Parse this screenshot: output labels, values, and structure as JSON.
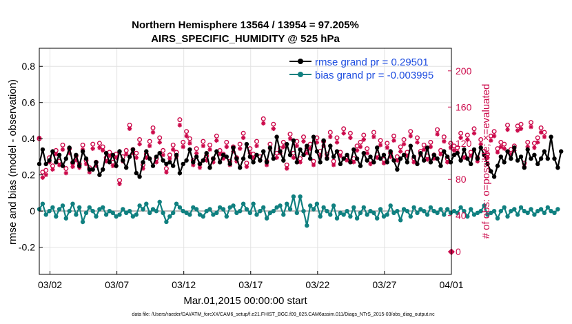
{
  "chart_data": {
    "type": "line",
    "title": "Northern Hemisphere 13564 / 13954 = 97.205%",
    "subtitle": "AIRS_SPECIFIC_HUMIDITY @ 525 hPa",
    "xlabel": "Mar.01,2015 00:00:00 start",
    "ylabel": "rmse and bias (model - observation)",
    "ylabel_right": "# of obs: o=possible; ×=evaluated",
    "ylim": [
      -0.35,
      0.9
    ],
    "ylim_right": [
      -25,
      225
    ],
    "xlim": [
      0.2,
      31.0
    ],
    "x_ticks": [
      1.0,
      6.0,
      11.0,
      16.0,
      21.0,
      26.0,
      31.0
    ],
    "x_ticklabels": [
      "03/02",
      "03/07",
      "03/12",
      "03/17",
      "03/22",
      "03/27",
      "04/01"
    ],
    "y_ticks": [
      -0.2,
      0,
      0.2,
      0.4,
      0.6,
      0.8
    ],
    "y_ticklabels": [
      "-0.2",
      "0",
      "0.2",
      "0.4",
      "0.6",
      "0.8"
    ],
    "y_right_ticks": [
      0,
      40,
      80,
      120,
      160,
      200
    ],
    "y_right_ticklabels": [
      "0",
      "40",
      "80",
      "120",
      "160",
      "200"
    ],
    "grid": true,
    "legend_position": "top-right",
    "series": [
      {
        "name": "rmse grand pr = 0.29501",
        "axis": "left",
        "color": "#000000",
        "marker": "filled-circle",
        "start": 0.2,
        "step": 0.25,
        "values": [
          0.26,
          0.34,
          0.26,
          0.28,
          0.33,
          0.27,
          0.31,
          0.25,
          0.29,
          0.35,
          0.27,
          0.31,
          0.25,
          0.33,
          0.29,
          0.23,
          0.23,
          0.27,
          0.2,
          0.23,
          0.32,
          0.27,
          0.31,
          0.25,
          0.33,
          0.28,
          0.24,
          0.3,
          0.34,
          0.21,
          0.19,
          0.27,
          0.33,
          0.29,
          0.25,
          0.3,
          0.32,
          0.28,
          0.26,
          0.27,
          0.25,
          0.31,
          0.21,
          0.26,
          0.28,
          0.34,
          0.27,
          0.3,
          0.26,
          0.28,
          0.32,
          0.24,
          0.29,
          0.33,
          0.27,
          0.31,
          0.3,
          0.26,
          0.35,
          0.29,
          0.24,
          0.29,
          0.37,
          0.3,
          0.27,
          0.31,
          0.28,
          0.33,
          0.27,
          0.35,
          0.29,
          0.41,
          0.33,
          0.28,
          0.37,
          0.31,
          0.39,
          0.27,
          0.34,
          0.31,
          0.36,
          0.29,
          0.41,
          0.33,
          0.27,
          0.39,
          0.29,
          0.36,
          0.3,
          0.33,
          0.26,
          0.29,
          0.31,
          0.27,
          0.34,
          0.29,
          0.25,
          0.32,
          0.28,
          0.3,
          0.27,
          0.35,
          0.29,
          0.31,
          0.27,
          0.33,
          0.28,
          0.23,
          0.29,
          0.31,
          0.27,
          0.36,
          0.3,
          0.26,
          0.32,
          0.28,
          0.35,
          0.27,
          0.31,
          0.29,
          0.25,
          0.33,
          0.3,
          0.27,
          0.31,
          0.32,
          0.28,
          0.34,
          0.29,
          0.26,
          0.34,
          0.29,
          0.35,
          0.31,
          0.26,
          0.22,
          0.19,
          0.25,
          0.3,
          0.27,
          0.33,
          0.29,
          0.35,
          0.28,
          0.3,
          0.24,
          0.34,
          0.29,
          0.31,
          0.26,
          0.29,
          0.33,
          0.29,
          0.41,
          0.29,
          0.24,
          0.33
        ]
      },
      {
        "name": "bias grand pr = -0.003995",
        "axis": "left",
        "color": "#108080",
        "marker": "filled-circle",
        "start": 0.2,
        "step": 0.25,
        "values": [
          0.01,
          0.04,
          -0.02,
          0.0,
          0.02,
          -0.03,
          0.01,
          0.03,
          -0.04,
          0.0,
          0.04,
          -0.02,
          0.02,
          -0.06,
          -0.01,
          0.02,
          0.0,
          -0.03,
          0.01,
          0.02,
          -0.02,
          0.0,
          -0.01,
          -0.03,
          -0.02,
          0.01,
          -0.01,
          0.0,
          -0.03,
          -0.02,
          0.03,
          0.01,
          0.04,
          -0.01,
          0.01,
          0.0,
          0.05,
          -0.01,
          -0.06,
          -0.03,
          -0.01,
          0.04,
          0.02,
          0.0,
          -0.01,
          -0.02,
          0.02,
          0.01,
          -0.02,
          -0.03,
          0.0,
          0.01,
          -0.02,
          -0.01,
          0.02,
          0.01,
          -0.03,
          0.02,
          0.03,
          -0.01,
          0.0,
          0.04,
          0.01,
          -0.01,
          0.04,
          -0.02,
          0.0,
          0.02,
          -0.04,
          -0.01,
          0.0,
          0.02,
          0.03,
          -0.02,
          0.04,
          0.01,
          0.08,
          -0.01,
          0.08,
          0.0,
          -0.08,
          0.03,
          0.01,
          0.04,
          -0.03,
          0.02,
          0.0,
          -0.02,
          0.03,
          -0.04,
          -0.01,
          -0.02,
          0.0,
          -0.03,
          0.02,
          -0.04,
          -0.01,
          0.02,
          -0.02,
          0.0,
          -0.01,
          -0.04,
          0.01,
          -0.03,
          -0.02,
          0.03,
          -0.01,
          0.0,
          -0.05,
          0.01,
          0.0,
          -0.03,
          0.02,
          -0.01,
          0.01,
          0.0,
          -0.02,
          0.02,
          0.0,
          -0.01,
          0.01,
          -0.02,
          0.01,
          -0.01,
          0.0,
          -0.01,
          0.02,
          0.0,
          -0.03,
          0.01,
          -0.02,
          -0.01,
          0.0,
          0.03,
          -0.02,
          -0.01,
          0.0,
          -0.04,
          0.0,
          0.02,
          -0.03,
          0.0,
          0.01,
          -0.02,
          0.02,
          0.0,
          -0.01,
          0.01,
          -0.02,
          0.0,
          0.01,
          -0.01,
          0.02,
          0.0,
          -0.01,
          0.01
        ]
      },
      {
        "name": "possible",
        "axis": "right",
        "color": "#cc0a4b",
        "marker": "open-circle",
        "start": 0.2,
        "step": 0.25,
        "values": [
          125,
          88,
          90,
          104,
          95,
          112,
          100,
          118,
          92,
          114,
          98,
          106,
          97,
          118,
          101,
          93,
          119,
          99,
          120,
          116,
          104,
          110,
          99,
          108,
          79,
          105,
          112,
          140,
          113,
          109,
          124,
          96,
          108,
          122,
          137,
          103,
          126,
          112,
          92,
          107,
          118,
          110,
          146,
          121,
          133,
          125,
          101,
          114,
          97,
          122,
          106,
          118,
          103,
          128,
          112,
          108,
          121,
          100,
          116,
          104,
          119,
          131,
          98,
          114,
          108,
          122,
          105,
          147,
          100,
          119,
          141,
          109,
          114,
          121,
          96,
          130,
          109,
          122,
          103,
          127,
          114,
          119,
          100,
          126,
          111,
          122,
          108,
          132,
          100,
          126,
          110,
          136,
          105,
          131,
          103,
          117,
          121,
          129,
          114,
          101,
          132,
          108,
          123,
          102,
          120,
          109,
          128,
          105,
          116,
          124,
          110,
          133,
          103,
          126,
          111,
          118,
          106,
          121,
          107,
          135,
          112,
          127,
          103,
          120,
          117,
          115,
          131,
          108,
          129,
          110,
          136,
          104,
          124,
          111,
          108,
          128,
          133,
          114,
          121,
          119,
          140,
          113,
          117,
          139,
          141,
          98,
          121,
          143,
          120,
          126,
          137,
          132
        ]
      },
      {
        "name": "evaluated",
        "axis": "right",
        "color": "#cc0a4b",
        "marker": "asterisk",
        "start": 0.2,
        "step": 0.25,
        "values": [
          126,
          82,
          85,
          99,
          91,
          108,
          96,
          113,
          87,
          109,
          94,
          101,
          93,
          113,
          97,
          88,
          114,
          95,
          115,
          112,
          100,
          106,
          95,
          104,
          75,
          100,
          108,
          136,
          109,
          104,
          119,
          92,
          104,
          117,
          132,
          99,
          121,
          107,
          88,
          103,
          113,
          105,
          140,
          116,
          128,
          120,
          96,
          109,
          93,
          117,
          101,
          113,
          99,
          123,
          108,
          103,
          116,
          96,
          111,
          100,
          114,
          126,
          94,
          109,
          104,
          117,
          101,
          142,
          96,
          114,
          136,
          104,
          109,
          116,
          92,
          125,
          104,
          117,
          99,
          122,
          109,
          114,
          96,
          121,
          106,
          117,
          104,
          127,
          96,
          121,
          106,
          131,
          101,
          126,
          99,
          112,
          116,
          124,
          109,
          97,
          127,
          104,
          118,
          98,
          115,
          105,
          123,
          101,
          111,
          119,
          106,
          128,
          99,
          121,
          107,
          113,
          102,
          116,
          103,
          130,
          108,
          122,
          99,
          115,
          112,
          110,
          126,
          104,
          124,
          106,
          131,
          100,
          119,
          107,
          104,
          123,
          128,
          110,
          116,
          114,
          135,
          108,
          112,
          134,
          136,
          94,
          116,
          138,
          115,
          121,
          132,
          127
        ]
      }
    ],
    "footnote": "data file: /Users/raeder/DAI/ATM_forcXX/CAM6_setup/f.e21.FHIST_BGC.f09_025.CAM6assim.011/Diags_NTrS_2015-03/obs_diag_output.nc"
  }
}
